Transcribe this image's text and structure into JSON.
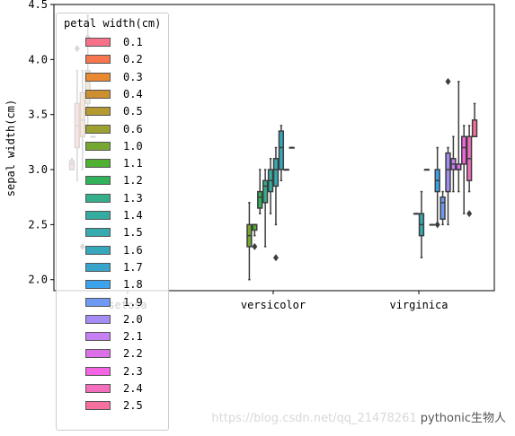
{
  "chart_data": {
    "type": "box",
    "xlabel": "",
    "ylabel": "sepal width(cm)",
    "categories": [
      "setosa",
      "versicolor",
      "virginica"
    ],
    "ylim": [
      1.9,
      4.5
    ],
    "yticks": [
      "2.0",
      "2.5",
      "3.0",
      "3.5",
      "4.0",
      "4.5"
    ],
    "legend": {
      "title": "petal width(cm)",
      "placement": "upper left",
      "entries": [
        "0.1",
        "0.2",
        "0.3",
        "0.4",
        "0.5",
        "0.6",
        "1.0",
        "1.1",
        "1.2",
        "1.3",
        "1.4",
        "1.5",
        "1.6",
        "1.7",
        "1.8",
        "1.9",
        "2.0",
        "2.1",
        "2.2",
        "2.3",
        "2.4",
        "2.5"
      ],
      "colors": [
        "#f77189",
        "#f7754f",
        "#e98a32",
        "#ce8f31",
        "#b69931",
        "#9da131",
        "#76a831",
        "#4fb031",
        "#32b25a",
        "#34ae8b",
        "#35aca0",
        "#36aaae",
        "#37a7bb",
        "#38a4ca",
        "#3ba3ec",
        "#6e9af4",
        "#a48cf4",
        "#c77ff4",
        "#dd70e8",
        "#f464e3",
        "#f56ebd",
        "#f6709f"
      ]
    },
    "series": [
      {
        "species": "setosa",
        "petal_width": "0.1",
        "q1": 3.0,
        "median": 3.05,
        "q3": 3.08,
        "whislo": 3.0,
        "whishi": 3.1,
        "fliers": []
      },
      {
        "species": "setosa",
        "petal_width": "0.2",
        "q1": 3.2,
        "median": 3.4,
        "q3": 3.6,
        "whislo": 2.9,
        "whishi": 3.9,
        "fliers": [
          4.1
        ]
      },
      {
        "species": "setosa",
        "petal_width": "0.3",
        "q1": 3.3,
        "median": 3.45,
        "q3": 3.7,
        "whislo": 3.0,
        "whishi": 3.9,
        "fliers": [
          2.3
        ]
      },
      {
        "species": "setosa",
        "petal_width": "0.4",
        "q1": 3.6,
        "median": 3.8,
        "q3": 3.9,
        "whislo": 3.4,
        "whishi": 4.4,
        "fliers": [
          4.2
        ]
      },
      {
        "species": "setosa",
        "petal_width": "0.5",
        "q1": 3.3,
        "median": 3.3,
        "q3": 3.3,
        "whislo": 3.3,
        "whishi": 3.3,
        "fliers": []
      },
      {
        "species": "setosa",
        "petal_width": "0.6",
        "q1": 3.5,
        "median": 3.5,
        "q3": 3.5,
        "whislo": 3.5,
        "whishi": 3.5,
        "fliers": []
      },
      {
        "species": "versicolor",
        "petal_width": "1.0",
        "q1": 2.3,
        "median": 2.4,
        "q3": 2.5,
        "whislo": 2.0,
        "whishi": 2.7,
        "fliers": []
      },
      {
        "species": "versicolor",
        "petal_width": "1.1",
        "q1": 2.45,
        "median": 2.5,
        "q3": 2.5,
        "whislo": 2.4,
        "whishi": 2.5,
        "fliers": [
          2.3
        ]
      },
      {
        "species": "versicolor",
        "petal_width": "1.2",
        "q1": 2.65,
        "median": 2.75,
        "q3": 2.8,
        "whislo": 2.6,
        "whishi": 3.0,
        "fliers": []
      },
      {
        "species": "versicolor",
        "petal_width": "1.3",
        "q1": 2.7,
        "median": 2.85,
        "q3": 2.9,
        "whislo": 2.3,
        "whishi": 3.0,
        "fliers": []
      },
      {
        "species": "versicolor",
        "petal_width": "1.4",
        "q1": 2.8,
        "median": 2.9,
        "q3": 3.0,
        "whislo": 2.6,
        "whishi": 3.1,
        "fliers": []
      },
      {
        "species": "versicolor",
        "petal_width": "1.5",
        "q1": 2.85,
        "median": 3.0,
        "q3": 3.1,
        "whislo": 2.5,
        "whishi": 3.2,
        "fliers": [
          2.2
        ]
      },
      {
        "species": "versicolor",
        "petal_width": "1.6",
        "q1": 3.0,
        "median": 3.2,
        "q3": 3.35,
        "whislo": 2.9,
        "whishi": 3.4,
        "fliers": []
      },
      {
        "species": "versicolor",
        "petal_width": "1.7",
        "q1": 3.0,
        "median": 3.0,
        "q3": 3.0,
        "whislo": 3.0,
        "whishi": 3.0,
        "fliers": []
      },
      {
        "species": "versicolor",
        "petal_width": "1.8",
        "q1": 3.2,
        "median": 3.2,
        "q3": 3.2,
        "whislo": 3.2,
        "whishi": 3.2,
        "fliers": []
      },
      {
        "species": "virginica",
        "petal_width": "1.4",
        "q1": 2.6,
        "median": 2.6,
        "q3": 2.6,
        "whislo": 2.6,
        "whishi": 2.6,
        "fliers": []
      },
      {
        "species": "virginica",
        "petal_width": "1.5",
        "q1": 2.4,
        "median": 2.5,
        "q3": 2.6,
        "whislo": 2.2,
        "whishi": 2.8,
        "fliers": []
      },
      {
        "species": "virginica",
        "petal_width": "1.6",
        "q1": 3.0,
        "median": 3.0,
        "q3": 3.0,
        "whislo": 3.0,
        "whishi": 3.0,
        "fliers": []
      },
      {
        "species": "virginica",
        "petal_width": "1.7",
        "q1": 2.5,
        "median": 2.5,
        "q3": 2.5,
        "whislo": 2.5,
        "whishi": 2.5,
        "fliers": []
      },
      {
        "species": "virginica",
        "petal_width": "1.8",
        "q1": 2.8,
        "median": 2.9,
        "q3": 3.0,
        "whislo": 2.5,
        "whishi": 3.2,
        "fliers": [
          2.5
        ]
      },
      {
        "species": "virginica",
        "petal_width": "1.9",
        "q1": 2.55,
        "median": 2.7,
        "q3": 2.75,
        "whislo": 2.5,
        "whishi": 2.8,
        "fliers": []
      },
      {
        "species": "virginica",
        "petal_width": "2.0",
        "q1": 2.8,
        "median": 3.0,
        "q3": 3.15,
        "whislo": 2.5,
        "whishi": 3.2,
        "fliers": [
          3.8
        ]
      },
      {
        "species": "virginica",
        "petal_width": "2.1",
        "q1": 3.0,
        "median": 3.05,
        "q3": 3.1,
        "whislo": 2.8,
        "whishi": 3.3,
        "fliers": []
      },
      {
        "species": "virginica",
        "petal_width": "2.2",
        "q1": 3.0,
        "median": 3.0,
        "q3": 3.05,
        "whislo": 2.8,
        "whishi": 3.8,
        "fliers": []
      },
      {
        "species": "virginica",
        "petal_width": "2.3",
        "q1": 3.05,
        "median": 3.2,
        "q3": 3.3,
        "whislo": 2.6,
        "whishi": 3.4,
        "fliers": []
      },
      {
        "species": "virginica",
        "petal_width": "2.4",
        "q1": 2.9,
        "median": 3.1,
        "q3": 3.3,
        "whislo": 2.8,
        "whishi": 3.4,
        "fliers": [
          2.6
        ]
      },
      {
        "species": "virginica",
        "petal_width": "2.5",
        "q1": 3.3,
        "median": 3.3,
        "q3": 3.45,
        "whislo": 3.3,
        "whishi": 3.6,
        "fliers": []
      }
    ]
  },
  "watermark": {
    "url": "https://blog.csdn.net/qq_21478261",
    "brand": "pythonic生物人"
  }
}
